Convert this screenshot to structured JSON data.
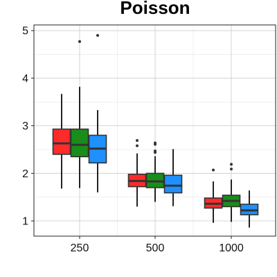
{
  "chart_data": {
    "type": "boxplot",
    "title": "Poisson",
    "xlabel": "",
    "ylabel": "",
    "categories": [
      "250",
      "500",
      "1000"
    ],
    "ylim": [
      0.68,
      5.12
    ],
    "yticks": [
      1,
      2,
      3,
      4,
      5
    ],
    "grid": true,
    "legend": "none",
    "series": [
      {
        "color": "#ff2b2b",
        "boxes": [
          {
            "category": "250",
            "whisker_low": 1.68,
            "q1": 2.4,
            "median": 2.63,
            "q3": 2.93,
            "whisker_high": 3.67,
            "outliers": []
          },
          {
            "category": "500",
            "whisker_low": 1.3,
            "q1": 1.72,
            "median": 1.84,
            "q3": 1.98,
            "whisker_high": 2.42,
            "outliers": [
              2.58,
              2.69
            ]
          },
          {
            "category": "1000",
            "whisker_low": 0.96,
            "q1": 1.27,
            "median": 1.36,
            "q3": 1.48,
            "whisker_high": 1.83,
            "outliers": [
              2.07
            ]
          }
        ]
      },
      {
        "color": "#1a8c1a",
        "boxes": [
          {
            "category": "250",
            "whisker_low": 1.69,
            "q1": 2.35,
            "median": 2.6,
            "q3": 2.93,
            "whisker_high": 3.82,
            "outliers": [
              4.77
            ]
          },
          {
            "category": "500",
            "whisker_low": 1.4,
            "q1": 1.7,
            "median": 1.83,
            "q3": 2.0,
            "whisker_high": 2.36,
            "outliers": [
              2.44,
              2.47,
              2.61,
              2.64
            ]
          },
          {
            "category": "1000",
            "whisker_low": 0.98,
            "q1": 1.3,
            "median": 1.42,
            "q3": 1.54,
            "whisker_high": 1.87,
            "outliers": [
              2.09,
              2.19
            ]
          }
        ]
      },
      {
        "color": "#1e90ff",
        "boxes": [
          {
            "category": "250",
            "whisker_low": 1.6,
            "q1": 2.22,
            "median": 2.52,
            "q3": 2.8,
            "whisker_high": 3.33,
            "outliers": [
              4.9
            ]
          },
          {
            "category": "500",
            "whisker_low": 1.31,
            "q1": 1.59,
            "median": 1.74,
            "q3": 1.96,
            "whisker_high": 2.51,
            "outliers": []
          },
          {
            "category": "1000",
            "whisker_low": 0.86,
            "q1": 1.13,
            "median": 1.22,
            "q3": 1.35,
            "whisker_high": 1.64,
            "outliers": []
          }
        ]
      }
    ]
  }
}
